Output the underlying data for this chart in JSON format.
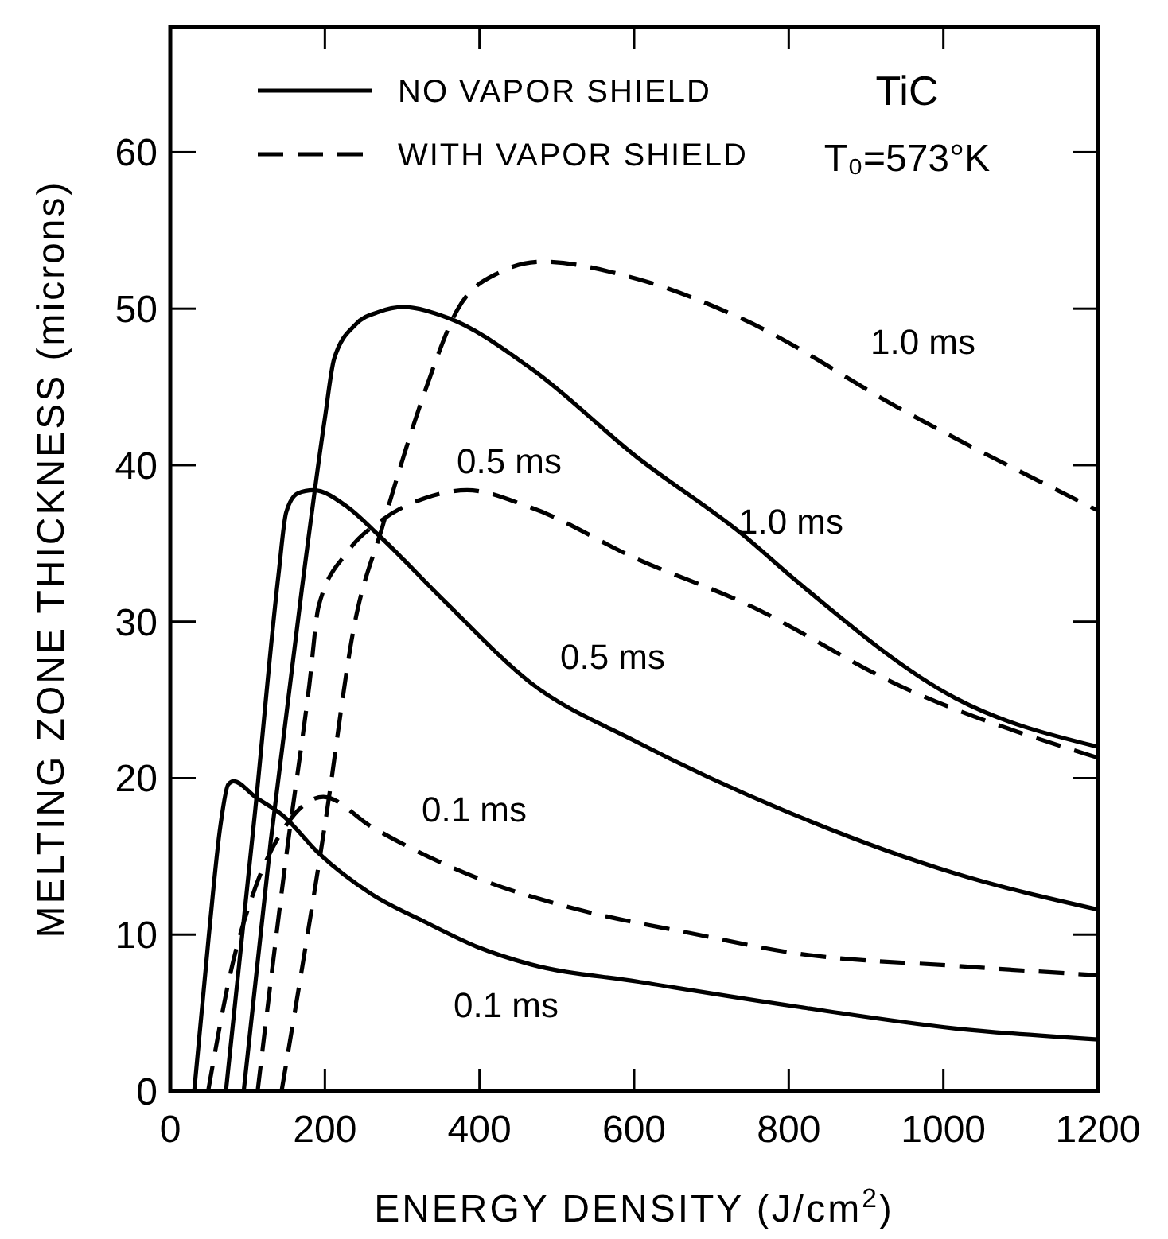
{
  "chart_data": {
    "type": "line",
    "xlabel": "ENERGY DENSITY (J/cm$^{2}$)",
    "ylabel": "MELTING ZONE THICKNESS (microns)",
    "xlim": [
      0,
      1200
    ],
    "xticks": [
      0,
      200,
      400,
      600,
      800,
      1000,
      1200
    ],
    "ylim": [
      0,
      68
    ],
    "yticks": [
      0,
      10,
      20,
      30,
      40,
      50,
      60
    ],
    "grid": false,
    "legend": "top left",
    "marker": "none",
    "series": [
      {
        "name": "NO VAPOR SHIELD",
        "color": "#000000",
        "line_style": "solid",
        "x": [
          31,
          50,
          65,
          75,
          82,
          110,
          146,
          192,
          260,
          330,
          398,
          466,
          604,
          810,
          1016,
          1200
        ],
        "values": [
          0,
          10,
          17,
          19.6,
          19.8,
          18.8,
          17.6,
          15.2,
          12.6,
          10.8,
          9.2,
          8.1,
          7.0,
          5.4,
          4.0,
          3.3
        ]
      },
      {
        "color": "#000000",
        "line_style": "solid",
        "x": [
          72,
          110,
          140,
          150,
          165,
          185,
          230,
          268,
          357,
          466,
          604,
          810,
          1016,
          1200
        ],
        "values": [
          0,
          18,
          33,
          37,
          38.2,
          38.4,
          37.3,
          35.6,
          31.2,
          26.1,
          22.3,
          17.6,
          13.9,
          11.6
        ]
      },
      {
        "color": "#000000",
        "line_style": "solid",
        "x": [
          95,
          130,
          170,
          200,
          212,
          240,
          270,
          301,
          360,
          466,
          604,
          742,
          810,
          1016,
          1200
        ],
        "values": [
          0,
          16,
          32,
          43,
          46.8,
          49,
          49.8,
          50.1,
          49.4,
          46.2,
          40.5,
          35.5,
          32.6,
          25.1,
          22.0
        ]
      },
      {
        "name": "WITH VAPOR SHIELD",
        "color": "#000000",
        "line_style": "dashed",
        "x": [
          49,
          80,
          110,
          150,
          198,
          260,
          398,
          536,
          672,
          810,
          1016,
          1200
        ],
        "values": [
          0,
          8,
          13,
          17,
          18.8,
          16.9,
          13.6,
          11.5,
          10.1,
          8.8,
          8.0,
          7.4
        ]
      },
      {
        "color": "#000000",
        "line_style": "dashed",
        "x": [
          113,
          150,
          180,
          192,
          230,
          274,
          330,
          384,
          466,
          604,
          742,
          948,
          1200
        ],
        "values": [
          0,
          15,
          26,
          31,
          34.5,
          36.5,
          37.9,
          38.4,
          37.3,
          34,
          31.2,
          25.8,
          21.3
        ]
      },
      {
        "color": "#000000",
        "line_style": "dashed",
        "x": [
          144,
          200,
          239,
          274,
          330,
          371,
          425,
          480,
          604,
          742,
          948,
          1200
        ],
        "values": [
          0,
          17,
          30,
          36,
          44.8,
          49.9,
          52.3,
          53,
          51.9,
          49.3,
          43.5,
          37.1
        ]
      }
    ],
    "annotations": [
      "TiC",
      "T₀=573°K",
      "1.0 ms",
      "1.0 ms",
      "0.5 ms",
      "0.5 ms",
      "0.1 ms",
      "0.1 ms"
    ]
  }
}
